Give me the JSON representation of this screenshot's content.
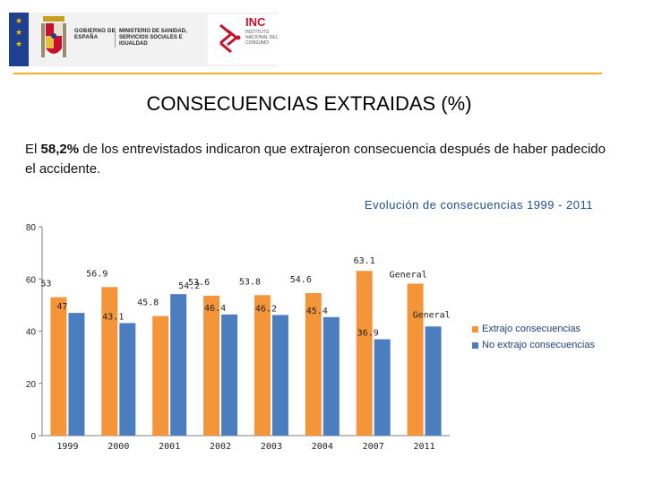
{
  "header": {
    "government": "GOBIERNO DE ESPAÑA",
    "ministry": "MINISTERIO DE SANIDAD, SERVICIOS SOCIALES E IGUALDAD",
    "inc_name": "INC",
    "inc_subtitle": "INSTITUTO NACIONAL DEL CONSUMO"
  },
  "title": "CONSECUENCIAS EXTRAIDAS (%)",
  "intro": {
    "prefix": "El ",
    "highlight": "58,2%",
    "suffix": " de los entrevistados indicaron que extrajeron consecuencia después de haber padecido el accidente."
  },
  "colors": {
    "extrajo": "#f5953a",
    "no_extrajo": "#4a7ebf",
    "accent": "#f0b020",
    "title_blue": "#1f4e8c"
  },
  "chart_data": {
    "type": "bar",
    "title": "Evolución de consecuencias 1999 - 2011",
    "categories": [
      "1999",
      "2000",
      "2001",
      "2002",
      "2003",
      "2004",
      "2007",
      "2011"
    ],
    "series": [
      {
        "name": "Extrajo consecuencias",
        "values": [
          53,
          56.9,
          45.8,
          53.6,
          53.8,
          54.6,
          63.1,
          58.2
        ],
        "labels": [
          "53",
          "56.9",
          "45.8",
          "53.6",
          "53.8",
          "54.6",
          "63.1",
          "General"
        ]
      },
      {
        "name": "No extrajo consecuencias",
        "values": [
          47,
          43.1,
          54.2,
          46.4,
          46.2,
          45.4,
          36.9,
          41.8
        ],
        "labels": [
          "47",
          "43.1",
          "54.2",
          "46.4",
          "46.2",
          "45.4",
          "36.9",
          "General"
        ]
      }
    ],
    "y_ticks": [
      "0",
      "20",
      "40",
      "60",
      "80"
    ],
    "ylim": [
      0,
      80
    ],
    "grid": false,
    "legend": "right"
  }
}
